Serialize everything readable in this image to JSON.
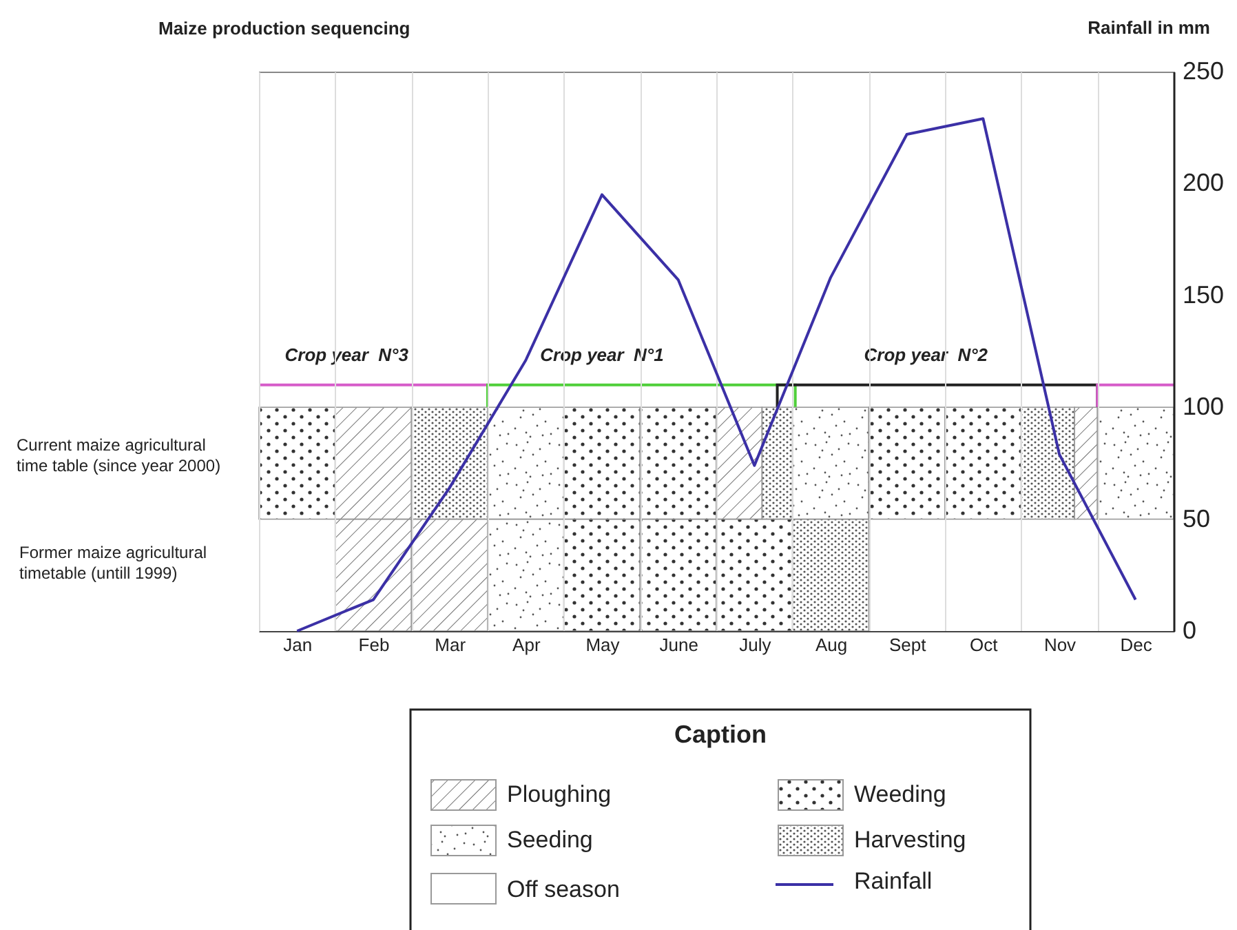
{
  "chart_data": {
    "type": "line",
    "title": "Maize production sequencing",
    "ylabel": "Rainfall in mm",
    "categories": [
      "Jan",
      "Feb",
      "Mar",
      "Apr",
      "May",
      "June",
      "July",
      "Aug",
      "Sept",
      "Oct",
      "Nov",
      "Dec"
    ],
    "series": [
      {
        "name": "Rainfall",
        "color": "#3b30a6",
        "values": [
          0,
          14,
          64,
          121,
          195,
          157,
          74,
          158,
          222,
          229,
          79,
          14
        ]
      }
    ],
    "ylim": [
      0,
      250
    ],
    "yticks": [
      0,
      50,
      100,
      150,
      200,
      250
    ],
    "grid": "x",
    "legend": "bottom",
    "annotations": [
      "Crop year  N°3",
      "Crop year  N°1",
      "Crop year  N°2",
      "Current maize agricultural time table (since year 2000)",
      "Former maize agricultural timetable (untill 1999)",
      "Caption",
      "Ploughing",
      "Seeding",
      "Off season",
      "Weeding",
      "Harvesting"
    ]
  }
}
